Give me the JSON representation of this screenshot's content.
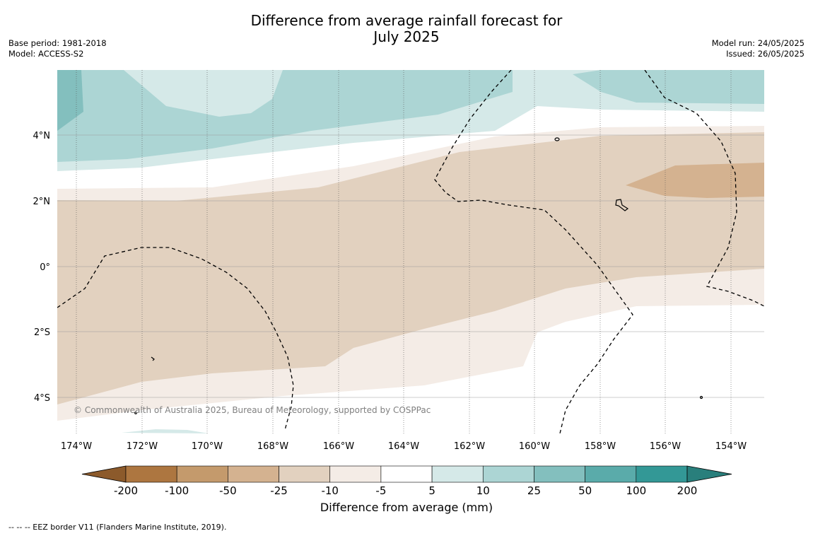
{
  "title_line1": "Difference from average rainfall forecast for",
  "title_line2": "July 2025",
  "base_period": "Base period: 1981-2018",
  "model": "Model: ACCESS-S2",
  "model_run": "Model run: 24/05/2025",
  "issued": "Issued: 26/05/2025",
  "copyright": "© Commonwealth of Australia 2025, Bureau of Meteorology, supported by COSPPac",
  "lat_labels": [
    "4°N",
    "2°N",
    "0°",
    "2°S",
    "4°S"
  ],
  "lon_labels": [
    "174°W",
    "172°W",
    "170°W",
    "168°W",
    "166°W",
    "164°W",
    "162°W",
    "160°W",
    "158°W",
    "156°W",
    "154°W"
  ],
  "colorbar": {
    "title": "Difference from average (mm)",
    "ticks": [
      "-200",
      "-100",
      "-50",
      "-25",
      "-10",
      "-5",
      "5",
      "10",
      "25",
      "50",
      "100",
      "200"
    ],
    "colors": [
      "#8c5a2b",
      "#ad7640",
      "#c49a6c",
      "#d4b290",
      "#e2d1bf",
      "#f4ece6",
      "#ffffff",
      "#d5e9e8",
      "#acd5d4",
      "#83bfbe",
      "#5aabaa",
      "#339896",
      "#297f7c"
    ]
  },
  "legend_note": "-- -- -- EEZ border V11 (Flanders Marine Institute, 2019)."
}
